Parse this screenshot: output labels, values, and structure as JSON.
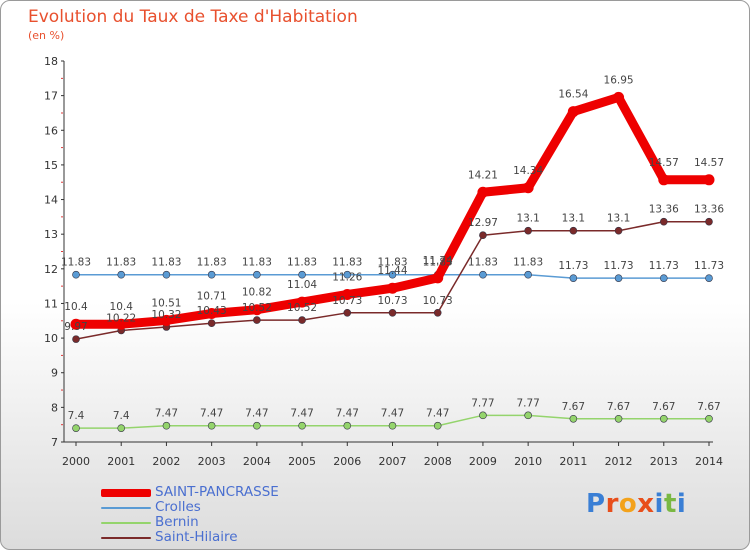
{
  "title": "Evolution du Taux de Taxe d'Habitation",
  "subtitle": "(en %)",
  "logo": {
    "text": "Proxiti",
    "colors": [
      "#3a7fd5",
      "#e84e1b",
      "#f3a21b",
      "#e84e1b",
      "#3a7fd5",
      "#7ab842",
      "#3a7fd5"
    ]
  },
  "chart_data": {
    "type": "line",
    "x": [
      "2000",
      "2001",
      "2002",
      "2003",
      "2004",
      "2005",
      "2006",
      "2007",
      "2008",
      "2009",
      "2010",
      "2011",
      "2012",
      "2013",
      "2014"
    ],
    "ylim": [
      7,
      18
    ],
    "yticks": [
      "7",
      "8",
      "9",
      "10",
      "11",
      "12",
      "13",
      "14",
      "15",
      "16",
      "17",
      "18"
    ],
    "grid": false,
    "legend_placement": "bottom-left",
    "series": [
      {
        "name": "SAINT-PANCRASSE",
        "color": "#ee0000",
        "values": [
          10.4,
          10.4,
          10.51,
          10.71,
          10.82,
          11.04,
          11.26,
          11.44,
          11.74,
          14.21,
          14.34,
          16.54,
          16.95,
          14.57,
          14.57
        ],
        "labels": [
          "10.4",
          "10.4",
          "10.51",
          "10.71",
          "10.82",
          "11.04",
          "11.26",
          "11.44",
          "11.74",
          "14.21",
          "14.34",
          "16.54",
          "16.95",
          "14.57",
          "14.57"
        ]
      },
      {
        "name": "Crolles",
        "color": "#5a9bd4",
        "values": [
          11.83,
          11.83,
          11.83,
          11.83,
          11.83,
          11.83,
          11.83,
          11.83,
          11.83,
          11.83,
          11.83,
          11.73,
          11.73,
          11.73,
          11.73
        ],
        "labels": [
          "11.83",
          "11.83",
          "11.83",
          "11.83",
          "11.83",
          "11.83",
          "11.83",
          "11.83",
          "11.83",
          "11.83",
          "11.83",
          "11.73",
          "11.73",
          "11.73",
          "11.73"
        ]
      },
      {
        "name": "Bernin",
        "color": "#94d46c",
        "values": [
          7.4,
          7.4,
          7.47,
          7.47,
          7.47,
          7.47,
          7.47,
          7.47,
          7.47,
          7.77,
          7.77,
          7.67,
          7.67,
          7.67,
          7.67
        ],
        "labels": [
          "7.4",
          "7.4",
          "7.47",
          "7.47",
          "7.47",
          "7.47",
          "7.47",
          "7.47",
          "7.47",
          "7.77",
          "7.77",
          "7.67",
          "7.67",
          "7.67",
          "7.67"
        ]
      },
      {
        "name": "Saint-Hilaire",
        "color": "#7a2a2a",
        "values": [
          9.97,
          10.22,
          10.32,
          10.43,
          10.52,
          10.52,
          10.73,
          10.73,
          10.73,
          12.97,
          13.1,
          13.1,
          13.1,
          13.36,
          13.36
        ],
        "labels": [
          "9.97",
          "10.22",
          "10.32",
          "10.43",
          "10.52",
          "10.52",
          "10.73",
          "10.73",
          "10.73",
          "12.97",
          "13.1",
          "13.1",
          "13.1",
          "13.36",
          "13.36"
        ]
      }
    ]
  }
}
